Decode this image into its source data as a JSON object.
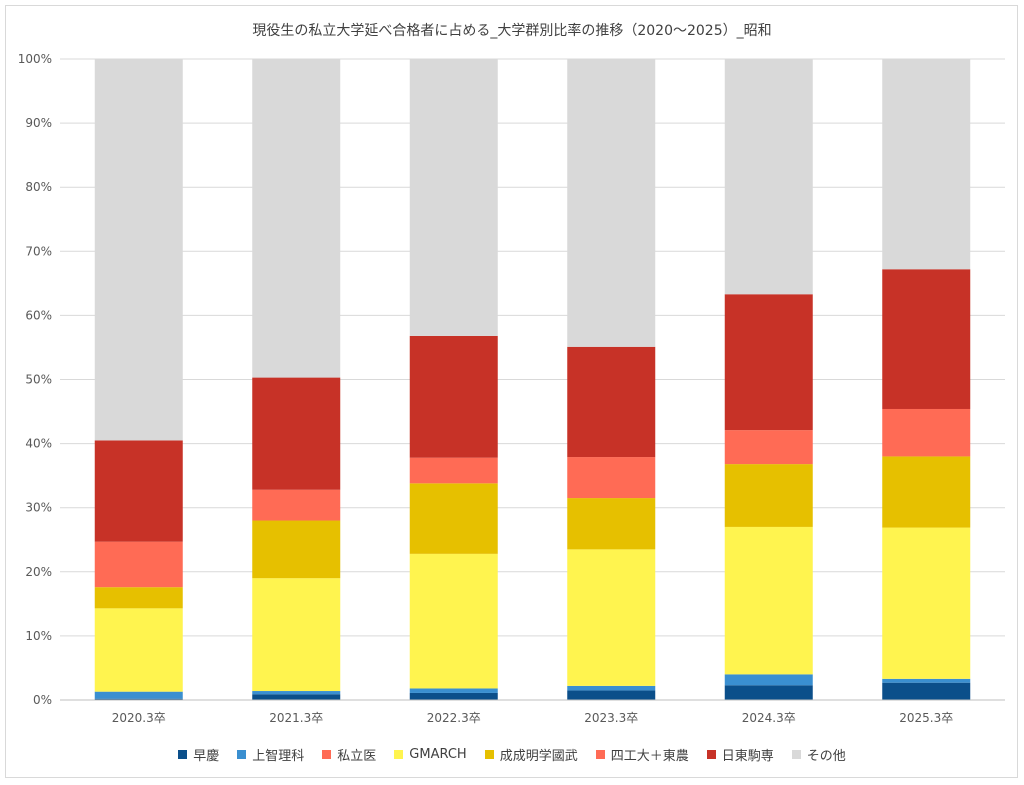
{
  "chart_data": {
    "type": "bar",
    "stacked": "percent",
    "title": "現役生の私立大学延べ合格者に占める_大学群別比率の推移（2020～2025）_昭和",
    "categories": [
      "2020.3卒",
      "2021.3卒",
      "2022.3卒",
      "2023.3卒",
      "2024.3卒",
      "2025.3卒"
    ],
    "ylim": [
      0,
      100
    ],
    "y_ticks": [
      "0%",
      "10%",
      "20%",
      "30%",
      "40%",
      "50%",
      "60%",
      "70%",
      "80%",
      "90%",
      "100%"
    ],
    "legend_position": "bottom",
    "grid": true,
    "series": [
      {
        "name": "早慶",
        "color": "#0b4f8a",
        "values": [
          0.2,
          0.9,
          1.1,
          1.5,
          2.3,
          2.7
        ]
      },
      {
        "name": "上智理科",
        "color": "#3a8fd0",
        "values": [
          1.1,
          0.5,
          0.7,
          0.7,
          1.7,
          0.6
        ]
      },
      {
        "name": "私立医",
        "color": "#ff6b55",
        "values": [
          0.0,
          0.0,
          0.0,
          0.0,
          0.0,
          0.0
        ]
      },
      {
        "name": "GMARCH",
        "color": "#fff44f",
        "values": [
          13.0,
          17.6,
          21.0,
          21.3,
          23.0,
          23.6
        ]
      },
      {
        "name": "成成明学國武",
        "color": "#e6c000",
        "values": [
          3.3,
          9.0,
          11.0,
          8.0,
          9.8,
          11.1
        ]
      },
      {
        "name": "四工大＋東農",
        "color": "#ff6b55",
        "values": [
          7.1,
          4.8,
          4.0,
          6.4,
          5.3,
          7.4
        ]
      },
      {
        "name": "日東駒専",
        "color": "#c73227",
        "values": [
          15.8,
          17.5,
          19.0,
          17.2,
          21.2,
          21.8
        ]
      },
      {
        "name": "その他",
        "color": "#d9d9d9",
        "values": [
          59.5,
          49.7,
          43.2,
          44.9,
          36.7,
          32.8
        ]
      }
    ]
  }
}
